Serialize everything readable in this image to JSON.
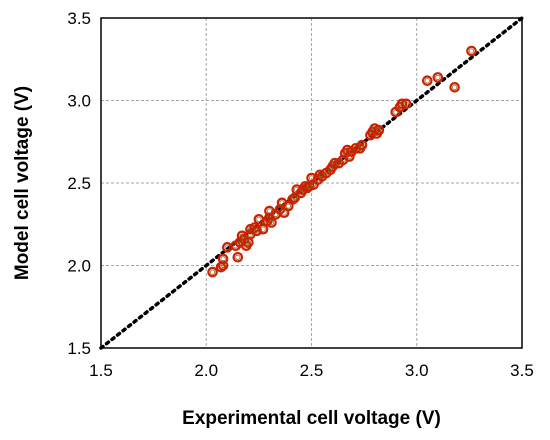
{
  "chart_data": {
    "type": "scatter",
    "xlabel": "Experimental cell  voltage (V)",
    "ylabel": "Model cell voltage (V)",
    "xlim": [
      1.5,
      3.5
    ],
    "ylim": [
      1.5,
      3.5
    ],
    "xticks": [
      "1.5",
      "2.0",
      "2.5",
      "3.0",
      "3.5"
    ],
    "yticks": [
      "1.5",
      "2.0",
      "2.5",
      "3.0",
      "3.5"
    ],
    "grid": true,
    "reference_line": {
      "style": "dotted",
      "from": [
        1.5,
        1.5
      ],
      "to": [
        3.5,
        3.5
      ],
      "color": "#000000"
    },
    "marker": {
      "shape": "open-circle",
      "edge_color": "#cc2200",
      "inner_color": "#8b6a3a"
    },
    "points": [
      [
        2.03,
        1.96
      ],
      [
        2.07,
        1.99
      ],
      [
        2.08,
        2.0
      ],
      [
        2.08,
        2.04
      ],
      [
        2.1,
        2.11
      ],
      [
        2.14,
        2.12
      ],
      [
        2.15,
        2.05
      ],
      [
        2.16,
        2.14
      ],
      [
        2.17,
        2.18
      ],
      [
        2.18,
        2.16
      ],
      [
        2.19,
        2.12
      ],
      [
        2.2,
        2.14
      ],
      [
        2.21,
        2.19
      ],
      [
        2.21,
        2.22
      ],
      [
        2.23,
        2.23
      ],
      [
        2.24,
        2.21
      ],
      [
        2.25,
        2.28
      ],
      [
        2.27,
        2.22
      ],
      [
        2.29,
        2.27
      ],
      [
        2.3,
        2.29
      ],
      [
        2.3,
        2.33
      ],
      [
        2.31,
        2.26
      ],
      [
        2.33,
        2.31
      ],
      [
        2.35,
        2.34
      ],
      [
        2.36,
        2.38
      ],
      [
        2.37,
        2.32
      ],
      [
        2.39,
        2.36
      ],
      [
        2.41,
        2.4
      ],
      [
        2.42,
        2.41
      ],
      [
        2.43,
        2.46
      ],
      [
        2.45,
        2.44
      ],
      [
        2.46,
        2.46
      ],
      [
        2.47,
        2.48
      ],
      [
        2.48,
        2.47
      ],
      [
        2.49,
        2.48
      ],
      [
        2.5,
        2.53
      ],
      [
        2.51,
        2.49
      ],
      [
        2.53,
        2.52
      ],
      [
        2.54,
        2.55
      ],
      [
        2.55,
        2.54
      ],
      [
        2.57,
        2.56
      ],
      [
        2.59,
        2.58
      ],
      [
        2.6,
        2.6
      ],
      [
        2.61,
        2.62
      ],
      [
        2.63,
        2.62
      ],
      [
        2.65,
        2.64
      ],
      [
        2.66,
        2.68
      ],
      [
        2.67,
        2.7
      ],
      [
        2.68,
        2.66
      ],
      [
        2.69,
        2.69
      ],
      [
        2.71,
        2.71
      ],
      [
        2.73,
        2.71
      ],
      [
        2.74,
        2.73
      ],
      [
        2.78,
        2.79
      ],
      [
        2.79,
        2.81
      ],
      [
        2.8,
        2.83
      ],
      [
        2.81,
        2.8
      ],
      [
        2.82,
        2.82
      ],
      [
        2.9,
        2.93
      ],
      [
        2.92,
        2.96
      ],
      [
        2.93,
        2.98
      ],
      [
        2.95,
        2.98
      ],
      [
        3.05,
        3.12
      ],
      [
        3.1,
        3.14
      ],
      [
        3.18,
        3.08
      ],
      [
        3.26,
        3.3
      ]
    ]
  }
}
